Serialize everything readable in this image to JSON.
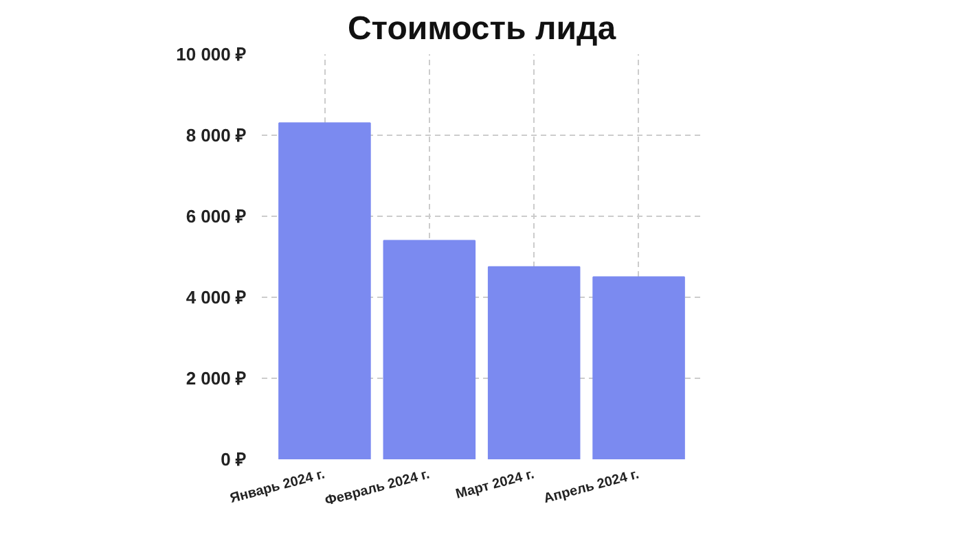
{
  "chart_data": {
    "type": "bar",
    "title": "Стоимость лида",
    "categories": [
      "Январь 2024 г.",
      "Февраль 2024 г.",
      "Март 2024 г.",
      "Апрель 2024 г."
    ],
    "values": [
      8300,
      5400,
      4750,
      4500
    ],
    "color": "#7b8af0",
    "ylim": [
      0,
      10000
    ],
    "yticks": [
      {
        "value": 0,
        "label": "0 ₽"
      },
      {
        "value": 2000,
        "label": "2 000 ₽"
      },
      {
        "value": 4000,
        "label": "4 000 ₽"
      },
      {
        "value": 6000,
        "label": "6 000 ₽"
      },
      {
        "value": 8000,
        "label": "8 000 ₽"
      },
      {
        "value": 10000,
        "label": "10 000 ₽"
      }
    ],
    "grid": true
  }
}
